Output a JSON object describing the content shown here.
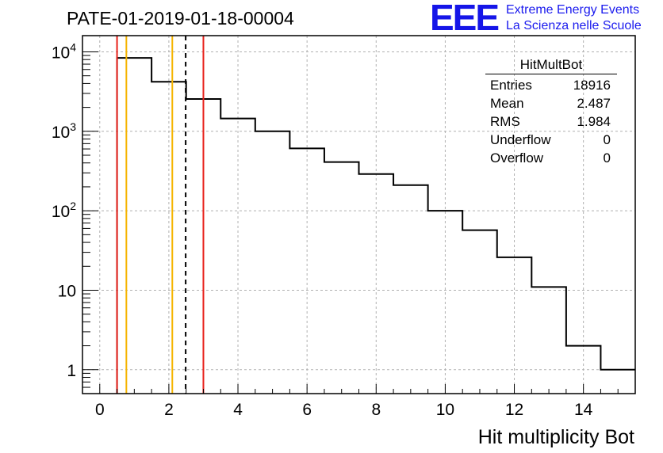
{
  "header": {
    "title": "PATE-01-2019-01-18-00004"
  },
  "logo": {
    "mark": "EEE",
    "line1": "Extreme Energy Events",
    "line2": "La Scienza nelle Scuole"
  },
  "stats_box": {
    "title": "HitMultBot",
    "rows": [
      {
        "label": "Entries",
        "value": "18916"
      },
      {
        "label": "Mean",
        "value": "2.487"
      },
      {
        "label": "RMS",
        "value": "1.984"
      },
      {
        "label": "Underflow",
        "value": "0"
      },
      {
        "label": "Overflow",
        "value": "0"
      }
    ]
  },
  "colors": {
    "histogram": "#000000",
    "red_line": "#e8201a",
    "orange_line": "#f5b400",
    "grid": "#b0b0b0",
    "logo": "#1515e8"
  },
  "chart_data": {
    "type": "bar",
    "style": "step-histogram",
    "xlabel": "Hit multiplicity Bot",
    "ylabel": "",
    "xlim": [
      -0.5,
      15.5
    ],
    "ylim": [
      0.5,
      16000
    ],
    "yscale": "log",
    "grid": true,
    "x_ticks": [
      0,
      2,
      4,
      6,
      8,
      10,
      12,
      14
    ],
    "x_tick_labels": [
      "0",
      "2",
      "4",
      "6",
      "8",
      "10",
      "12",
      "14"
    ],
    "y_ticks": [
      1,
      10,
      100,
      1000,
      10000
    ],
    "y_tick_labels": [
      {
        "base": "1",
        "exp": ""
      },
      {
        "base": "10",
        "exp": ""
      },
      {
        "base": "10",
        "exp": "2"
      },
      {
        "base": "10",
        "exp": "3"
      },
      {
        "base": "10",
        "exp": "4"
      }
    ],
    "bins": [
      {
        "lo": 0.5,
        "hi": 1.5,
        "count": 8400
      },
      {
        "lo": 1.5,
        "hi": 2.5,
        "count": 4200
      },
      {
        "lo": 2.5,
        "hi": 3.5,
        "count": 2550
      },
      {
        "lo": 3.5,
        "hi": 4.5,
        "count": 1450
      },
      {
        "lo": 4.5,
        "hi": 5.5,
        "count": 1000
      },
      {
        "lo": 5.5,
        "hi": 6.5,
        "count": 610
      },
      {
        "lo": 6.5,
        "hi": 7.5,
        "count": 410
      },
      {
        "lo": 7.5,
        "hi": 8.5,
        "count": 290
      },
      {
        "lo": 8.5,
        "hi": 9.5,
        "count": 210
      },
      {
        "lo": 9.5,
        "hi": 10.5,
        "count": 100
      },
      {
        "lo": 10.5,
        "hi": 11.5,
        "count": 57
      },
      {
        "lo": 11.5,
        "hi": 12.5,
        "count": 26
      },
      {
        "lo": 12.5,
        "hi": 13.5,
        "count": 11
      },
      {
        "lo": 13.5,
        "hi": 14.5,
        "count": 2
      },
      {
        "lo": 14.5,
        "hi": 15.5,
        "count": 1
      }
    ],
    "markers": [
      {
        "x": 0.5,
        "color": "#e8201a",
        "style": "solid"
      },
      {
        "x": 0.77,
        "color": "#f5b400",
        "style": "solid"
      },
      {
        "x": 2.1,
        "color": "#f5b400",
        "style": "solid"
      },
      {
        "x": 2.487,
        "color": "#000000",
        "style": "dashed"
      },
      {
        "x": 3.0,
        "color": "#e8201a",
        "style": "solid"
      }
    ]
  }
}
